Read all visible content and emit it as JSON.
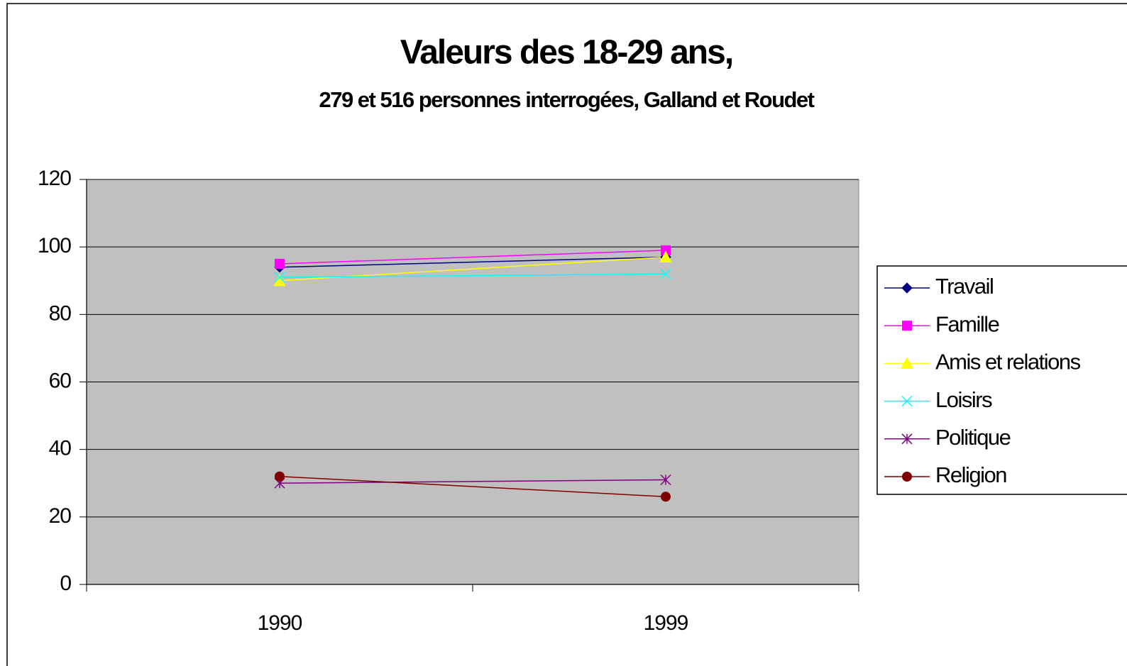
{
  "chart_data": {
    "type": "line",
    "title": "Valeurs des 18-29 ans,",
    "subtitle": "279 et 516 personnes interrogées, Galland et Roudet",
    "categories": [
      "1990",
      "1999"
    ],
    "series": [
      {
        "name": "Travail",
        "color": "#000080",
        "marker": "diamond",
        "values": [
          94,
          97
        ]
      },
      {
        "name": "Famille",
        "color": "#ff00ff",
        "marker": "square",
        "values": [
          95,
          99
        ]
      },
      {
        "name": "Amis et relations",
        "color": "#ffff00",
        "marker": "triangle",
        "values": [
          90,
          97
        ]
      },
      {
        "name": "Loisirs",
        "color": "#00ffff",
        "marker": "x",
        "values": [
          91,
          92
        ]
      },
      {
        "name": "Politique",
        "color": "#800080",
        "marker": "star",
        "values": [
          30,
          31
        ]
      },
      {
        "name": "Religion",
        "color": "#800000",
        "marker": "circle",
        "values": [
          32,
          26
        ]
      }
    ],
    "ylim": [
      0,
      120
    ],
    "yticks": [
      0,
      20,
      40,
      60,
      80,
      100,
      120
    ],
    "grid": true,
    "legend": "right"
  }
}
